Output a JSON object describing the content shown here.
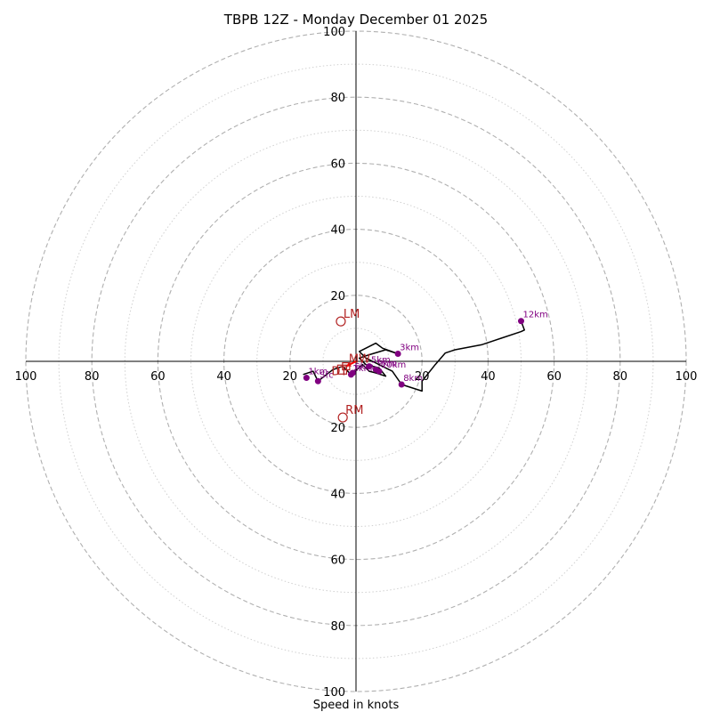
{
  "chart_data": {
    "type": "line",
    "title": "TBPB 12Z - Monday December 01 2025",
    "xlabel": "Speed in knots",
    "ring_max": 100,
    "ring_major_values": [
      20,
      40,
      60,
      80,
      100
    ],
    "ring_minor_values": [
      10,
      30,
      50,
      70,
      90
    ],
    "axis_ticks": {
      "top": [
        "100",
        "80",
        "60",
        "40",
        "20"
      ],
      "bottom": [
        "20",
        "40",
        "60",
        "80",
        "100"
      ],
      "left": [
        "100",
        "80",
        "60",
        "40",
        "20"
      ],
      "right": [
        "20",
        "40",
        "60",
        "80",
        "100"
      ]
    },
    "colors": {
      "trace": "#000000",
      "height_marker": "#800080",
      "motion_marker": "#b22222",
      "mean_wind": "#ff0000",
      "major_ring": "#b0b0b0",
      "minor_ring": "#d0d0d0"
    },
    "hodograph": [
      [
        -16,
        -4
      ],
      [
        -13,
        -3
      ],
      [
        -11.5,
        -6
      ],
      [
        -7,
        -2.5
      ],
      [
        -4,
        -1.5
      ],
      [
        -1.5,
        -4
      ],
      [
        2,
        -1
      ],
      [
        4,
        -3
      ],
      [
        6,
        -3.5
      ],
      [
        9,
        -4.5
      ],
      [
        7,
        -2
      ],
      [
        3,
        -1
      ],
      [
        1,
        1
      ],
      [
        4,
        2
      ],
      [
        9,
        3.5
      ],
      [
        12.7,
        2.3
      ],
      [
        8,
        4
      ],
      [
        6,
        5.5
      ],
      [
        1,
        3
      ],
      [
        3,
        1
      ],
      [
        7,
        -1
      ],
      [
        9,
        -2
      ],
      [
        11,
        -3
      ],
      [
        13.8,
        -7
      ],
      [
        20,
        -9
      ],
      [
        20,
        -6
      ],
      [
        24,
        -1
      ],
      [
        27,
        2.5
      ],
      [
        30,
        3.5
      ],
      [
        38,
        5
      ],
      [
        44,
        7
      ],
      [
        50,
        9
      ],
      [
        51,
        9.5
      ],
      [
        50,
        12.2
      ]
    ],
    "height_markers": [
      {
        "label": "Sfc",
        "u": -11.5,
        "v": -6
      },
      {
        "label": "1km",
        "u": -15,
        "v": -5
      },
      {
        "label": "2km",
        "u": -1.5,
        "v": -4
      },
      {
        "label": "3km",
        "u": 12.7,
        "v": 2.3
      },
      {
        "label": "5km",
        "u": 4,
        "v": -1.5
      },
      {
        "label": "6km",
        "u": -1,
        "v": -3.5
      },
      {
        "label": "9km",
        "u": 6,
        "v": -2.5
      },
      {
        "label": "10km",
        "u": 7,
        "v": -3
      },
      {
        "label": "8km",
        "u": 13.8,
        "v": -7
      },
      {
        "label": "12km",
        "u": 50,
        "v": 12.2
      }
    ],
    "storm_motions": [
      {
        "label": "LM",
        "u": -4.6,
        "v": 12.1
      },
      {
        "label": "RM",
        "u": -4,
        "v": -17
      },
      {
        "label": "MW",
        "u": -3,
        "v": -1.5
      },
      {
        "label": "DT",
        "u": -4.2,
        "v": -2.5
      }
    ],
    "mean_wind_vector": {
      "u": -3,
      "v": -1.5
    }
  }
}
